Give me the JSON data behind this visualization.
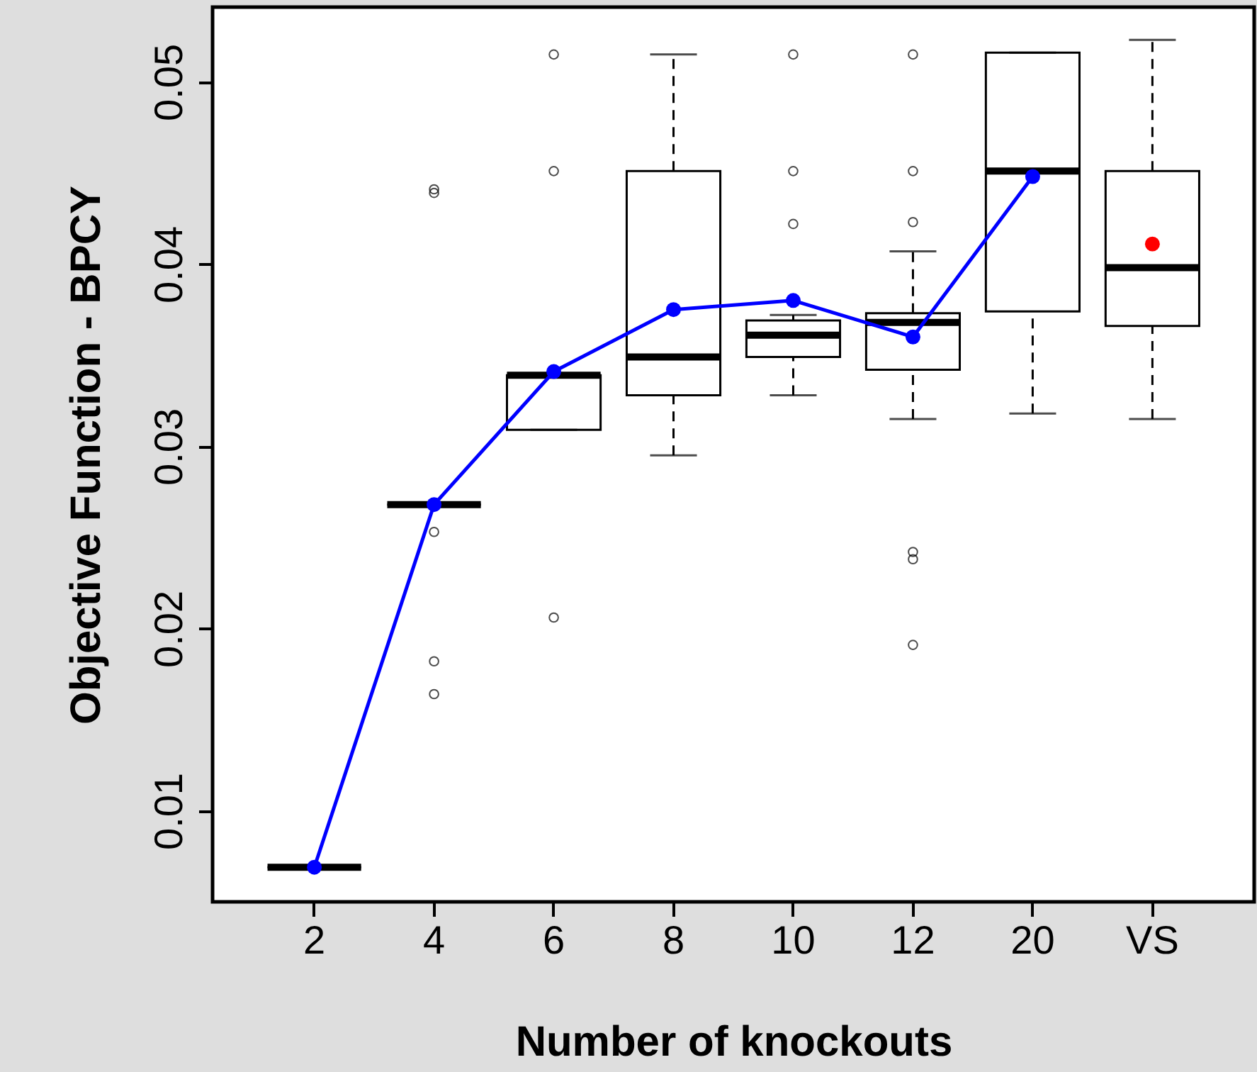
{
  "chart_data": {
    "type": "box",
    "xlabel": "Number of knockouts",
    "ylabel": "Objective Function - BPCY",
    "categories": [
      "2",
      "4",
      "6",
      "8",
      "10",
      "12",
      "20",
      "VS"
    ],
    "ylim": [
      0.005,
      0.0541
    ],
    "yticks": [
      0.01,
      0.02,
      0.03,
      0.04,
      0.05
    ],
    "grid": false,
    "series": [
      {
        "type": "box",
        "color": "#000000",
        "boxes": [
          {
            "low": 0.0069,
            "q1": 0.0069,
            "median": 0.0069,
            "q3": 0.0069,
            "high": 0.0069
          },
          {
            "low": 0.0268,
            "q1": 0.0268,
            "median": 0.0268,
            "q3": 0.0268,
            "high": 0.0268,
            "outliers": [
              0.0441,
              0.0439,
              0.0253,
              0.0182,
              0.0164
            ]
          },
          {
            "low": 0.0309,
            "q1": 0.0309,
            "median": 0.0339,
            "q3": 0.0339,
            "high": 0.0339,
            "outliers": [
              0.0515,
              0.0451,
              0.0206
            ]
          },
          {
            "low": 0.0295,
            "q1": 0.0328,
            "median": 0.0349,
            "q3": 0.0451,
            "high": 0.0515
          },
          {
            "low": 0.0328,
            "q1": 0.0349,
            "median": 0.0361,
            "q3": 0.0369,
            "high": 0.0372,
            "outliers": [
              0.0515,
              0.0451,
              0.0422
            ]
          },
          {
            "low": 0.0315,
            "q1": 0.0342,
            "median": 0.0368,
            "q3": 0.0373,
            "high": 0.0407,
            "outliers": [
              0.0515,
              0.0451,
              0.0423,
              0.0242,
              0.0238,
              0.0191
            ]
          },
          {
            "low": 0.0318,
            "q1": 0.0374,
            "median": 0.0451,
            "q3": 0.0516,
            "high": 0.0516
          },
          {
            "low": 0.0315,
            "q1": 0.0366,
            "median": 0.0398,
            "q3": 0.0451,
            "high": 0.0523
          }
        ]
      },
      {
        "type": "line",
        "color": "#0000ff",
        "marker": "circle",
        "line_style": "solid",
        "values": [
          0.0069,
          0.0268,
          0.0341,
          0.0375,
          0.038,
          0.036,
          0.0448,
          null
        ]
      },
      {
        "type": "scatter",
        "color": "#ff0000",
        "marker": "circle",
        "x": [
          "VS"
        ],
        "values": [
          0.0411
        ]
      }
    ]
  }
}
